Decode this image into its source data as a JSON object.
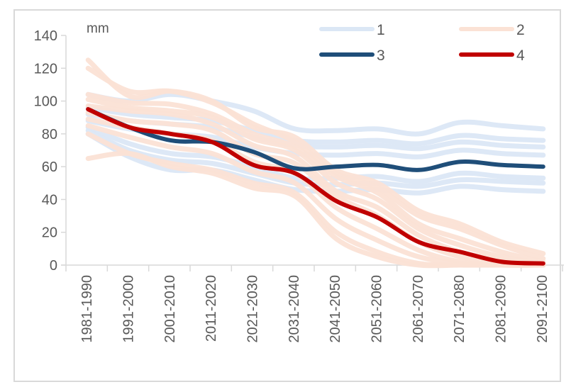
{
  "chart_data": {
    "type": "line",
    "title": "",
    "ylabel": "mm",
    "xlabel": "",
    "ylim": [
      0,
      140
    ],
    "yticks": [
      0,
      20,
      40,
      60,
      80,
      100,
      120,
      140
    ],
    "grid": false,
    "legend_position": "top-right",
    "categories": [
      "1981-1990",
      "1991-2000",
      "2001-2010",
      "2011-2020",
      "2021-2030",
      "2031-2040",
      "2041-2050",
      "2051-2060",
      "2061-2070",
      "2071-2080",
      "2081-2090",
      "2091-2100"
    ],
    "legend": [
      {
        "key": "1",
        "label": "1",
        "color": "#dbe7f5"
      },
      {
        "key": "2",
        "label": "2",
        "color": "#fbe2d5"
      },
      {
        "key": "3",
        "label": "3",
        "color": "#1f4e79"
      },
      {
        "key": "4",
        "label": "4",
        "color": "#c00000"
      }
    ],
    "series": [
      {
        "name": "1",
        "group": "1",
        "color": "#dbe7f5",
        "values": [
          104,
          100,
          104,
          100,
          94,
          83,
          82,
          83,
          80,
          87,
          85,
          83
        ]
      },
      {
        "name": "1",
        "group": "1",
        "color": "#dbe7f5",
        "values": [
          96,
          92,
          90,
          88,
          82,
          76,
          75,
          76,
          74,
          79,
          77,
          76
        ]
      },
      {
        "name": "1",
        "group": "1",
        "color": "#dbe7f5",
        "values": [
          92,
          88,
          86,
          84,
          78,
          73,
          72,
          73,
          71,
          75,
          73,
          72
        ]
      },
      {
        "name": "1",
        "group": "1",
        "color": "#dbe7f5",
        "values": [
          88,
          83,
          80,
          78,
          72,
          68,
          67,
          68,
          66,
          70,
          68,
          67
        ]
      },
      {
        "name": "1",
        "group": "1",
        "color": "#dbe7f5",
        "values": [
          84,
          74,
          68,
          66,
          60,
          53,
          53,
          54,
          51,
          56,
          54,
          53
        ]
      },
      {
        "name": "1",
        "group": "1",
        "color": "#dbe7f5",
        "values": [
          82,
          70,
          64,
          62,
          56,
          50,
          49,
          50,
          48,
          52,
          51,
          50
        ]
      },
      {
        "name": "1",
        "group": "1",
        "color": "#dbe7f5",
        "values": [
          80,
          66,
          58,
          58,
          52,
          46,
          45,
          46,
          44,
          48,
          46,
          45
        ]
      },
      {
        "name": "2",
        "group": "2",
        "color": "#fbe2d5",
        "values": [
          125,
          103,
          106,
          100,
          84,
          78,
          58,
          50,
          33,
          25,
          14,
          7
        ]
      },
      {
        "name": "2",
        "group": "2",
        "color": "#fbe2d5",
        "values": [
          120,
          106,
          106,
          99,
          86,
          75,
          56,
          47,
          30,
          22,
          12,
          4
        ]
      },
      {
        "name": "2",
        "group": "2",
        "color": "#fbe2d5",
        "values": [
          104,
          99,
          98,
          92,
          80,
          72,
          54,
          44,
          25,
          16,
          8,
          2
        ]
      },
      {
        "name": "2",
        "group": "2",
        "color": "#fbe2d5",
        "values": [
          101,
          96,
          94,
          90,
          77,
          70,
          50,
          40,
          22,
          12,
          5,
          1
        ]
      },
      {
        "name": "2",
        "group": "2",
        "color": "#fbe2d5",
        "values": [
          97,
          94,
          92,
          86,
          73,
          66,
          45,
          35,
          18,
          8,
          3,
          0
        ]
      },
      {
        "name": "2",
        "group": "2",
        "color": "#fbe2d5",
        "values": [
          93,
          88,
          86,
          82,
          68,
          62,
          42,
          30,
          14,
          5,
          1,
          0
        ]
      },
      {
        "name": "2",
        "group": "2",
        "color": "#fbe2d5",
        "values": [
          89,
          84,
          80,
          76,
          63,
          56,
          35,
          22,
          9,
          2,
          0,
          0
        ]
      },
      {
        "name": "2",
        "group": "2",
        "color": "#fbe2d5",
        "values": [
          85,
          78,
          72,
          68,
          57,
          50,
          28,
          15,
          5,
          1,
          0,
          0
        ]
      },
      {
        "name": "2",
        "group": "2",
        "color": "#fbe2d5",
        "values": [
          80,
          68,
          62,
          58,
          50,
          44,
          20,
          8,
          1,
          0,
          0,
          0
        ]
      },
      {
        "name": "2",
        "group": "2",
        "color": "#fbe2d5",
        "values": [
          65,
          68,
          60,
          56,
          47,
          42,
          16,
          5,
          0,
          0,
          0,
          0
        ]
      },
      {
        "name": "3",
        "group": "3",
        "color": "#1f4e79",
        "values": [
          95,
          84,
          76,
          75,
          69,
          59,
          60,
          61,
          58,
          63,
          61,
          60
        ]
      },
      {
        "name": "4",
        "group": "4",
        "color": "#c00000",
        "values": [
          95,
          84,
          80,
          75,
          61,
          56,
          39,
          29,
          14,
          8,
          2,
          1
        ]
      }
    ]
  }
}
